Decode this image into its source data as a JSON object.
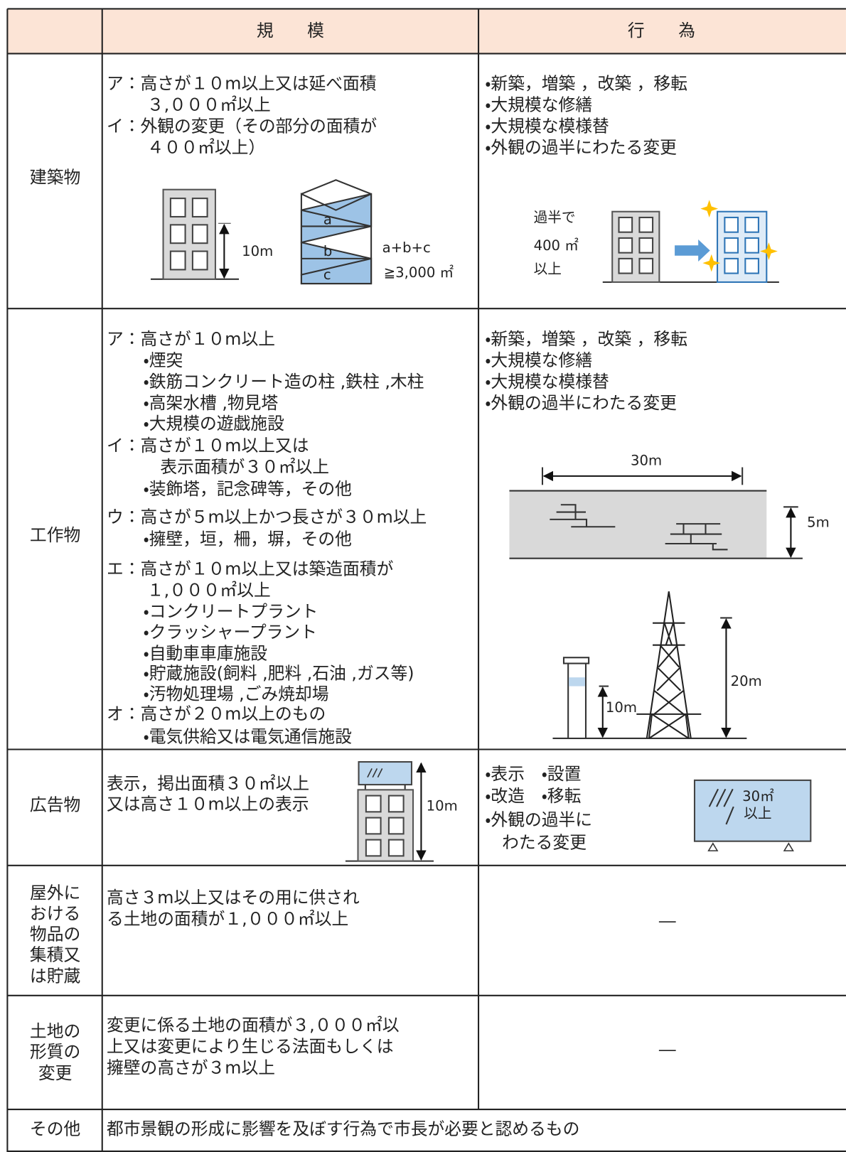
{
  "table": {
    "columns": [
      "規　　模",
      "行　　為"
    ],
    "rows": [
      {
        "label": [
          "建築物"
        ],
        "scale": [
          "ア：高さが１０m以上又は延べ面積",
          "３,０００㎡以上",
          "イ：外観の変更（その部分の面積が",
          "４００㎡以上）"
        ],
        "action": [
          "・新築，増築 ，改築 ，移転",
          "・大規模な修繕",
          "・大規模な模様替",
          "・外観の過半にわたる変更"
        ],
        "scale_figure": [
          "10m",
          "a",
          "b",
          "c",
          "a+b+c",
          "≧3,000 ㎡"
        ],
        "action_figure": [
          "過半で",
          "400 ㎡",
          "以上"
        ]
      },
      {
        "label": [
          "工作物"
        ],
        "scale": [
          "ア：高さが１０m以上",
          "・煙突",
          "・鉄筋コンクリート造の柱 ,鉄柱 ,木柱",
          "・高架水槽 ,物見塔",
          "・大規模の遊戯施設",
          "イ：高さが１０m以上又は",
          "表示面積が３０㎡以上",
          "・装飾塔，記念碑等，その他",
          "ウ：高さが５m以上かつ長さが３０m以上",
          "・擁壁，垣，柵，塀，その他",
          "エ：高さが１０m以上又は築造面積が",
          "１,０００㎡以上",
          "・コンクリートプラント",
          "・クラッシャープラント",
          "・自動車車庫施設",
          "・貯蔵施設(飼料 ,肥料 ,石油 ,ガス等)",
          "・汚物処理場 ,ごみ焼却場",
          "オ：高さが２０m以上のもの",
          "・電気供給又は電気通信施設"
        ],
        "action": [
          "・新築，増築 ，改築 ，移転",
          "・大規模な修繕",
          "・大規模な模様替",
          "・外観の過半にわたる変更"
        ],
        "action_figure": [
          "30m",
          "5m",
          "20m",
          "10m"
        ]
      },
      {
        "label": [
          "広告物"
        ],
        "scale": [
          "表示，掲出面積３０㎡以上",
          "又は高さ１０m以上の表示"
        ],
        "action": [
          "・表示　・設置",
          "・改造　・移転",
          "・外観の過半に",
          "わたる変更"
        ],
        "scale_figure": [
          "10m"
        ],
        "action_figure": [
          "30㎡",
          "以上"
        ]
      },
      {
        "label": [
          "屋外に",
          "おける",
          "物品の",
          "集積又",
          "は貯蔵"
        ],
        "scale": [
          "高さ３m以上又はその用に供され",
          "る土地の面積が１,０００㎡以上"
        ],
        "action": [
          "―"
        ]
      },
      {
        "label": [
          "土地の",
          "形質の",
          "変更"
        ],
        "scale": [
          "変更に係る土地の面積が３,０００㎡以",
          "上又は変更により生じる法面もしくは",
          "擁壁の高さが３m以上"
        ],
        "action": [
          "―"
        ]
      },
      {
        "label": [
          "その他"
        ],
        "scale": [
          "都市景観の形成に影響を及ぼす行為で市長が必要と認めるもの"
        ]
      }
    ]
  }
}
